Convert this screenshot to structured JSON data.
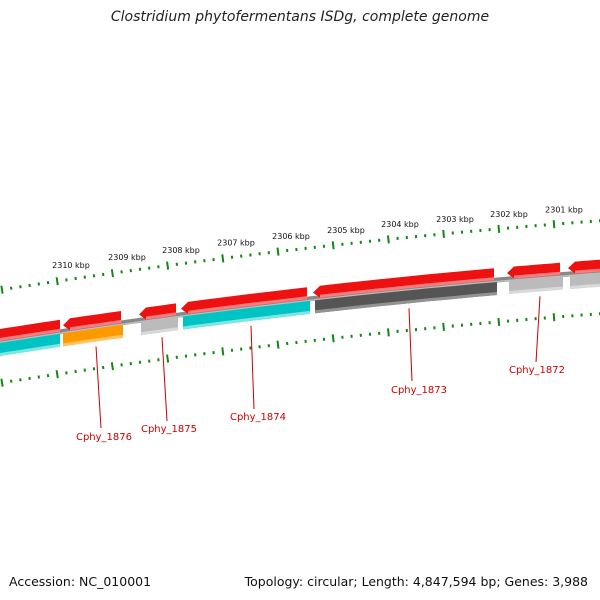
{
  "title": "Clostridium phytofermentans ISDg, complete genome",
  "footer": {
    "accession": "Accession: NC_010001",
    "summary": "Topology: circular; Length: 4,847,594 bp; Genes: 3,988"
  },
  "genome_track": {
    "tick_labels": [
      "2301 kbp",
      "2302 kbp",
      "2303 kbp",
      "2304 kbp",
      "2305 kbp",
      "2306 kbp",
      "2307 kbp",
      "2308 kbp",
      "2309 kbp",
      "2310 kbp"
    ],
    "gene_labels": [
      "Cphy_1872",
      "Cphy_1873",
      "Cphy_1874",
      "Cphy_1875",
      "Cphy_1876"
    ]
  },
  "colors": {
    "cds_forward": "#ee1111",
    "cds_reverse": "#ff1111",
    "feature_cyan": "#00c4c4",
    "feature_dark": "#555555",
    "feature_light": "#bbbbbb",
    "feature_orange": "#ff9900",
    "backbone": "#888888",
    "ticks": "#118811",
    "label": "#cc0000"
  }
}
